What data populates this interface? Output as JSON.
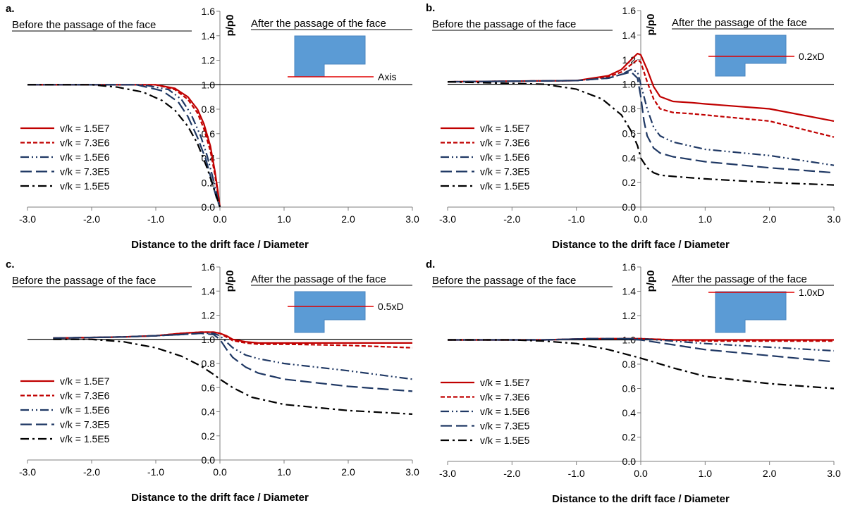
{
  "chart_data": [
    {
      "type": "line",
      "panel_label": "a.",
      "before_label": "Before the passage of the face",
      "after_label": "After the passage of the face",
      "ylabel": "p/p0",
      "xlabel": "Distance to the drift face / Diameter",
      "xlim": [
        -3.0,
        3.0
      ],
      "ylim": [
        0.0,
        1.6
      ],
      "x_ticks": [
        "-3.0",
        "-2.0",
        "-1.0",
        "0.0",
        "1.0",
        "2.0",
        "3.0"
      ],
      "y_ticks": [
        "0.0",
        "0.2",
        "0.4",
        "0.6",
        "0.8",
        "1.0",
        "1.2",
        "1.4",
        "1.6"
      ],
      "reference_line": 1.0,
      "inset_label": "Axis",
      "inset_level": "axis",
      "legend_position": "left",
      "series": [
        {
          "name": "v/k = 1.5E7",
          "color": "#c00000",
          "dash": "solid",
          "x": [
            -3.0,
            -1.0,
            -0.7,
            -0.5,
            -0.35,
            -0.25,
            -0.15,
            -0.08,
            -0.03,
            0.0
          ],
          "y": [
            1.0,
            1.0,
            0.97,
            0.9,
            0.8,
            0.68,
            0.5,
            0.3,
            0.12,
            0.0
          ]
        },
        {
          "name": "v/k = 7.3E6",
          "color": "#c00000",
          "dash": "short-dash",
          "x": [
            -3.0,
            -1.0,
            -0.7,
            -0.5,
            -0.35,
            -0.25,
            -0.15,
            -0.08,
            -0.03,
            0.0
          ],
          "y": [
            1.0,
            1.0,
            0.96,
            0.88,
            0.77,
            0.64,
            0.46,
            0.27,
            0.1,
            0.0
          ]
        },
        {
          "name": "v/k = 1.5E6",
          "color": "#1f3864",
          "dash": "dash-dot-dot",
          "x": [
            -3.0,
            -1.2,
            -0.8,
            -0.6,
            -0.45,
            -0.3,
            -0.2,
            -0.1,
            -0.04,
            0.0
          ],
          "y": [
            1.0,
            1.0,
            0.96,
            0.88,
            0.76,
            0.58,
            0.42,
            0.22,
            0.08,
            0.0
          ]
        },
        {
          "name": "v/k = 7.3E5",
          "color": "#1f3864",
          "dash": "long-dash",
          "x": [
            -3.0,
            -1.3,
            -0.9,
            -0.65,
            -0.5,
            -0.35,
            -0.22,
            -0.12,
            -0.05,
            0.0
          ],
          "y": [
            1.0,
            1.0,
            0.95,
            0.86,
            0.74,
            0.57,
            0.39,
            0.2,
            0.07,
            0.0
          ]
        },
        {
          "name": "v/k = 1.5E5",
          "color": "#000000",
          "dash": "dash-dot",
          "x": [
            -3.0,
            -2.0,
            -1.6,
            -1.2,
            -0.9,
            -0.7,
            -0.5,
            -0.35,
            -0.2,
            -0.1,
            0.0
          ],
          "y": [
            1.0,
            1.0,
            0.98,
            0.94,
            0.87,
            0.79,
            0.66,
            0.52,
            0.32,
            0.16,
            0.0
          ]
        }
      ]
    },
    {
      "type": "line",
      "panel_label": "b.",
      "before_label": "Before the passage of the face",
      "after_label": "After the passage of the face",
      "ylabel": "p/p0",
      "xlabel": "Distance to the drift face / Diameter",
      "xlim": [
        -3.0,
        3.0
      ],
      "ylim": [
        0.0,
        1.6
      ],
      "x_ticks": [
        "-3.0",
        "-2.0",
        "-1.0",
        "0.0",
        "1.0",
        "2.0",
        "3.0"
      ],
      "y_ticks": [
        "0.0",
        "0.2",
        "0.4",
        "0.6",
        "0.8",
        "1.0",
        "1.2",
        "1.4",
        "1.6"
      ],
      "reference_line": 1.0,
      "inset_label": "0.2xD",
      "inset_level": "0.2xD",
      "legend_position": "left",
      "series": [
        {
          "name": "v/k = 1.5E7",
          "color": "#c00000",
          "dash": "solid",
          "x": [
            -3.0,
            -1.0,
            -0.5,
            -0.3,
            -0.15,
            -0.05,
            0.0,
            0.1,
            0.2,
            0.3,
            0.5,
            0.8,
            1.0,
            2.0,
            3.0
          ],
          "y": [
            1.02,
            1.03,
            1.07,
            1.12,
            1.2,
            1.25,
            1.24,
            1.12,
            0.98,
            0.9,
            0.86,
            0.85,
            0.84,
            0.8,
            0.7
          ]
        },
        {
          "name": "v/k = 7.3E6",
          "color": "#c00000",
          "dash": "short-dash",
          "x": [
            -3.0,
            -1.0,
            -0.5,
            -0.3,
            -0.15,
            -0.05,
            0.0,
            0.1,
            0.2,
            0.3,
            0.5,
            0.8,
            1.0,
            2.0,
            3.0
          ],
          "y": [
            1.02,
            1.03,
            1.06,
            1.1,
            1.16,
            1.2,
            1.18,
            1.02,
            0.88,
            0.8,
            0.77,
            0.76,
            0.75,
            0.7,
            0.57
          ]
        },
        {
          "name": "v/k = 1.5E6",
          "color": "#1f3864",
          "dash": "dash-dot-dot",
          "x": [
            -3.0,
            -1.0,
            -0.5,
            -0.3,
            -0.15,
            -0.05,
            0.0,
            0.1,
            0.2,
            0.3,
            0.5,
            1.0,
            2.0,
            3.0
          ],
          "y": [
            1.02,
            1.03,
            1.05,
            1.08,
            1.12,
            1.1,
            1.0,
            0.8,
            0.65,
            0.58,
            0.53,
            0.47,
            0.42,
            0.34
          ]
        },
        {
          "name": "v/k = 7.3E5",
          "color": "#1f3864",
          "dash": "long-dash",
          "x": [
            -3.0,
            -1.0,
            -0.5,
            -0.3,
            -0.15,
            -0.05,
            0.0,
            0.05,
            0.1,
            0.2,
            0.3,
            0.5,
            1.0,
            2.0,
            3.0
          ],
          "y": [
            1.02,
            1.03,
            1.05,
            1.08,
            1.1,
            1.05,
            0.9,
            0.7,
            0.58,
            0.48,
            0.44,
            0.41,
            0.37,
            0.32,
            0.28
          ]
        },
        {
          "name": "v/k = 1.5E5",
          "color": "#000000",
          "dash": "dash-dot",
          "x": [
            -3.0,
            -1.5,
            -1.0,
            -0.6,
            -0.3,
            -0.15,
            -0.05,
            0.0,
            0.1,
            0.2,
            0.3,
            0.5,
            1.0,
            2.0,
            3.0
          ],
          "y": [
            1.02,
            1.0,
            0.96,
            0.88,
            0.75,
            0.62,
            0.5,
            0.4,
            0.32,
            0.28,
            0.26,
            0.25,
            0.23,
            0.2,
            0.18
          ]
        }
      ]
    },
    {
      "type": "line",
      "panel_label": "c.",
      "before_label": "Before the passage of the face",
      "after_label": "After the passage of the face",
      "ylabel": "p/p0",
      "xlabel": "Distance to the drift face / Diameter",
      "xlim": [
        -3.0,
        3.0
      ],
      "ylim": [
        0.0,
        1.6
      ],
      "x_ticks": [
        "-3.0",
        "-2.0",
        "-1.0",
        "0.0",
        "1.0",
        "2.0",
        "3.0"
      ],
      "y_ticks": [
        "0.0",
        "0.2",
        "0.4",
        "0.6",
        "0.8",
        "1.0",
        "1.2",
        "1.4",
        "1.6"
      ],
      "reference_line": 1.0,
      "inset_label": "0.5xD",
      "inset_level": "0.5xD",
      "legend_position": "left",
      "series": [
        {
          "name": "v/k = 1.5E7",
          "color": "#c00000",
          "dash": "solid",
          "x": [
            -2.6,
            -1.5,
            -1.0,
            -0.6,
            -0.3,
            -0.1,
            0.0,
            0.1,
            0.2,
            0.4,
            0.6,
            1.0,
            2.0,
            3.0
          ],
          "y": [
            1.01,
            1.02,
            1.03,
            1.05,
            1.06,
            1.06,
            1.05,
            1.03,
            1.0,
            0.98,
            0.97,
            0.97,
            0.97,
            0.97
          ]
        },
        {
          "name": "v/k = 7.3E6",
          "color": "#c00000",
          "dash": "short-dash",
          "x": [
            -2.6,
            -1.5,
            -1.0,
            -0.6,
            -0.3,
            -0.1,
            0.0,
            0.1,
            0.2,
            0.4,
            0.6,
            1.0,
            2.0,
            3.0
          ],
          "y": [
            1.01,
            1.02,
            1.03,
            1.05,
            1.06,
            1.06,
            1.05,
            1.02,
            0.99,
            0.97,
            0.96,
            0.96,
            0.95,
            0.93
          ]
        },
        {
          "name": "v/k = 1.5E6",
          "color": "#1f3864",
          "dash": "dash-dot-dot",
          "x": [
            -2.6,
            -1.5,
            -1.0,
            -0.6,
            -0.3,
            -0.1,
            0.0,
            0.1,
            0.2,
            0.4,
            0.6,
            1.0,
            2.0,
            3.0
          ],
          "y": [
            1.01,
            1.02,
            1.03,
            1.04,
            1.05,
            1.05,
            1.03,
            0.98,
            0.93,
            0.87,
            0.84,
            0.8,
            0.74,
            0.67
          ]
        },
        {
          "name": "v/k = 7.3E5",
          "color": "#1f3864",
          "dash": "long-dash",
          "x": [
            -2.6,
            -1.5,
            -1.0,
            -0.6,
            -0.3,
            -0.1,
            0.0,
            0.1,
            0.2,
            0.4,
            0.6,
            1.0,
            2.0,
            3.0
          ],
          "y": [
            1.01,
            1.02,
            1.03,
            1.04,
            1.05,
            1.04,
            1.0,
            0.92,
            0.85,
            0.77,
            0.72,
            0.67,
            0.61,
            0.57
          ]
        },
        {
          "name": "v/k = 1.5E5",
          "color": "#000000",
          "dash": "dash-dot",
          "x": [
            -2.6,
            -2.0,
            -1.5,
            -1.0,
            -0.6,
            -0.3,
            -0.1,
            0.0,
            0.2,
            0.5,
            1.0,
            2.0,
            3.0
          ],
          "y": [
            1.0,
            1.0,
            0.98,
            0.93,
            0.86,
            0.78,
            0.71,
            0.67,
            0.6,
            0.52,
            0.46,
            0.41,
            0.38
          ]
        }
      ]
    },
    {
      "type": "line",
      "panel_label": "d.",
      "before_label": "Before the passage of the face",
      "after_label": "After the passage of the face",
      "ylabel": "p/p0",
      "xlabel": "Distance to the drift face / Diameter",
      "xlim": [
        -3.0,
        3.0
      ],
      "ylim": [
        0.0,
        1.6
      ],
      "x_ticks": [
        "-3.0",
        "-2.0",
        "-1.0",
        "0.0",
        "1.0",
        "2.0",
        "3.0"
      ],
      "y_ticks": [
        "0.0",
        "0.2",
        "0.4",
        "0.6",
        "0.8",
        "1.0",
        "1.2",
        "1.4",
        "1.6"
      ],
      "reference_line": 1.0,
      "inset_label": "1.0xD",
      "inset_level": "1.0xD",
      "legend_position": "left",
      "series": [
        {
          "name": "v/k = 1.5E7",
          "color": "#c00000",
          "dash": "solid",
          "x": [
            -3.0,
            -1.5,
            -0.8,
            -0.3,
            0.0,
            0.5,
            1.0,
            2.0,
            3.0
          ],
          "y": [
            1.0,
            1.0,
            1.01,
            1.01,
            1.01,
            1.0,
            1.0,
            1.0,
            1.0
          ]
        },
        {
          "name": "v/k = 7.3E6",
          "color": "#c00000",
          "dash": "short-dash",
          "x": [
            -3.0,
            -1.5,
            -0.8,
            -0.3,
            0.0,
            0.5,
            1.0,
            2.0,
            3.0
          ],
          "y": [
            1.0,
            1.0,
            1.01,
            1.01,
            1.01,
            1.0,
            0.99,
            0.99,
            0.99
          ]
        },
        {
          "name": "v/k = 1.5E6",
          "color": "#1f3864",
          "dash": "dash-dot-dot",
          "x": [
            -3.0,
            -1.5,
            -0.8,
            -0.3,
            0.0,
            0.5,
            1.0,
            2.0,
            3.0
          ],
          "y": [
            1.0,
            1.0,
            1.01,
            1.01,
            1.01,
            0.99,
            0.97,
            0.94,
            0.91
          ]
        },
        {
          "name": "v/k = 7.3E5",
          "color": "#1f3864",
          "dash": "long-dash",
          "x": [
            -3.0,
            -1.5,
            -0.8,
            -0.3,
            0.0,
            0.5,
            1.0,
            2.0,
            3.0
          ],
          "y": [
            1.0,
            1.0,
            1.01,
            1.01,
            1.0,
            0.96,
            0.92,
            0.87,
            0.82
          ]
        },
        {
          "name": "v/k = 1.5E5",
          "color": "#000000",
          "dash": "dash-dot",
          "x": [
            -3.0,
            -2.0,
            -1.5,
            -1.0,
            -0.5,
            0.0,
            0.5,
            1.0,
            2.0,
            3.0
          ],
          "y": [
            1.0,
            1.0,
            0.99,
            0.97,
            0.92,
            0.85,
            0.77,
            0.7,
            0.64,
            0.6
          ]
        }
      ]
    }
  ]
}
